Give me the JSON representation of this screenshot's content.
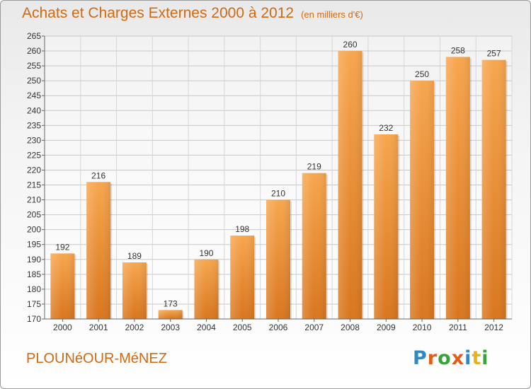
{
  "title": "Achats et Charges Externes 2000 à 2012",
  "unit": "(en milliers d'€)",
  "commune": "PLOUNéOUR-MéNEZ",
  "logo": {
    "letters": [
      "P",
      "r",
      "o",
      "x",
      "i",
      "t",
      "i"
    ],
    "colors": [
      "#2f8ac4",
      "#e25d18",
      "#3aa23a",
      "#e25d18",
      "#2f8ac4",
      "#e9b21a",
      "#3aa23a"
    ]
  },
  "chart_data": {
    "type": "bar",
    "title": "Achats et Charges Externes 2000 à 2012",
    "categories": [
      "2000",
      "2001",
      "2002",
      "2003",
      "2004",
      "2005",
      "2006",
      "2007",
      "2008",
      "2009",
      "2010",
      "2011",
      "2012"
    ],
    "values": [
      192,
      216,
      189,
      173,
      190,
      198,
      210,
      219,
      260,
      232,
      250,
      258,
      257
    ],
    "ylim": [
      170,
      265
    ],
    "yticks": [
      170,
      175,
      180,
      185,
      190,
      195,
      200,
      205,
      210,
      215,
      220,
      225,
      230,
      235,
      240,
      245,
      250,
      255,
      260,
      265
    ],
    "grid": true,
    "bar_color_top": "#f7a64e",
    "bar_color_bottom": "#d9761e"
  }
}
